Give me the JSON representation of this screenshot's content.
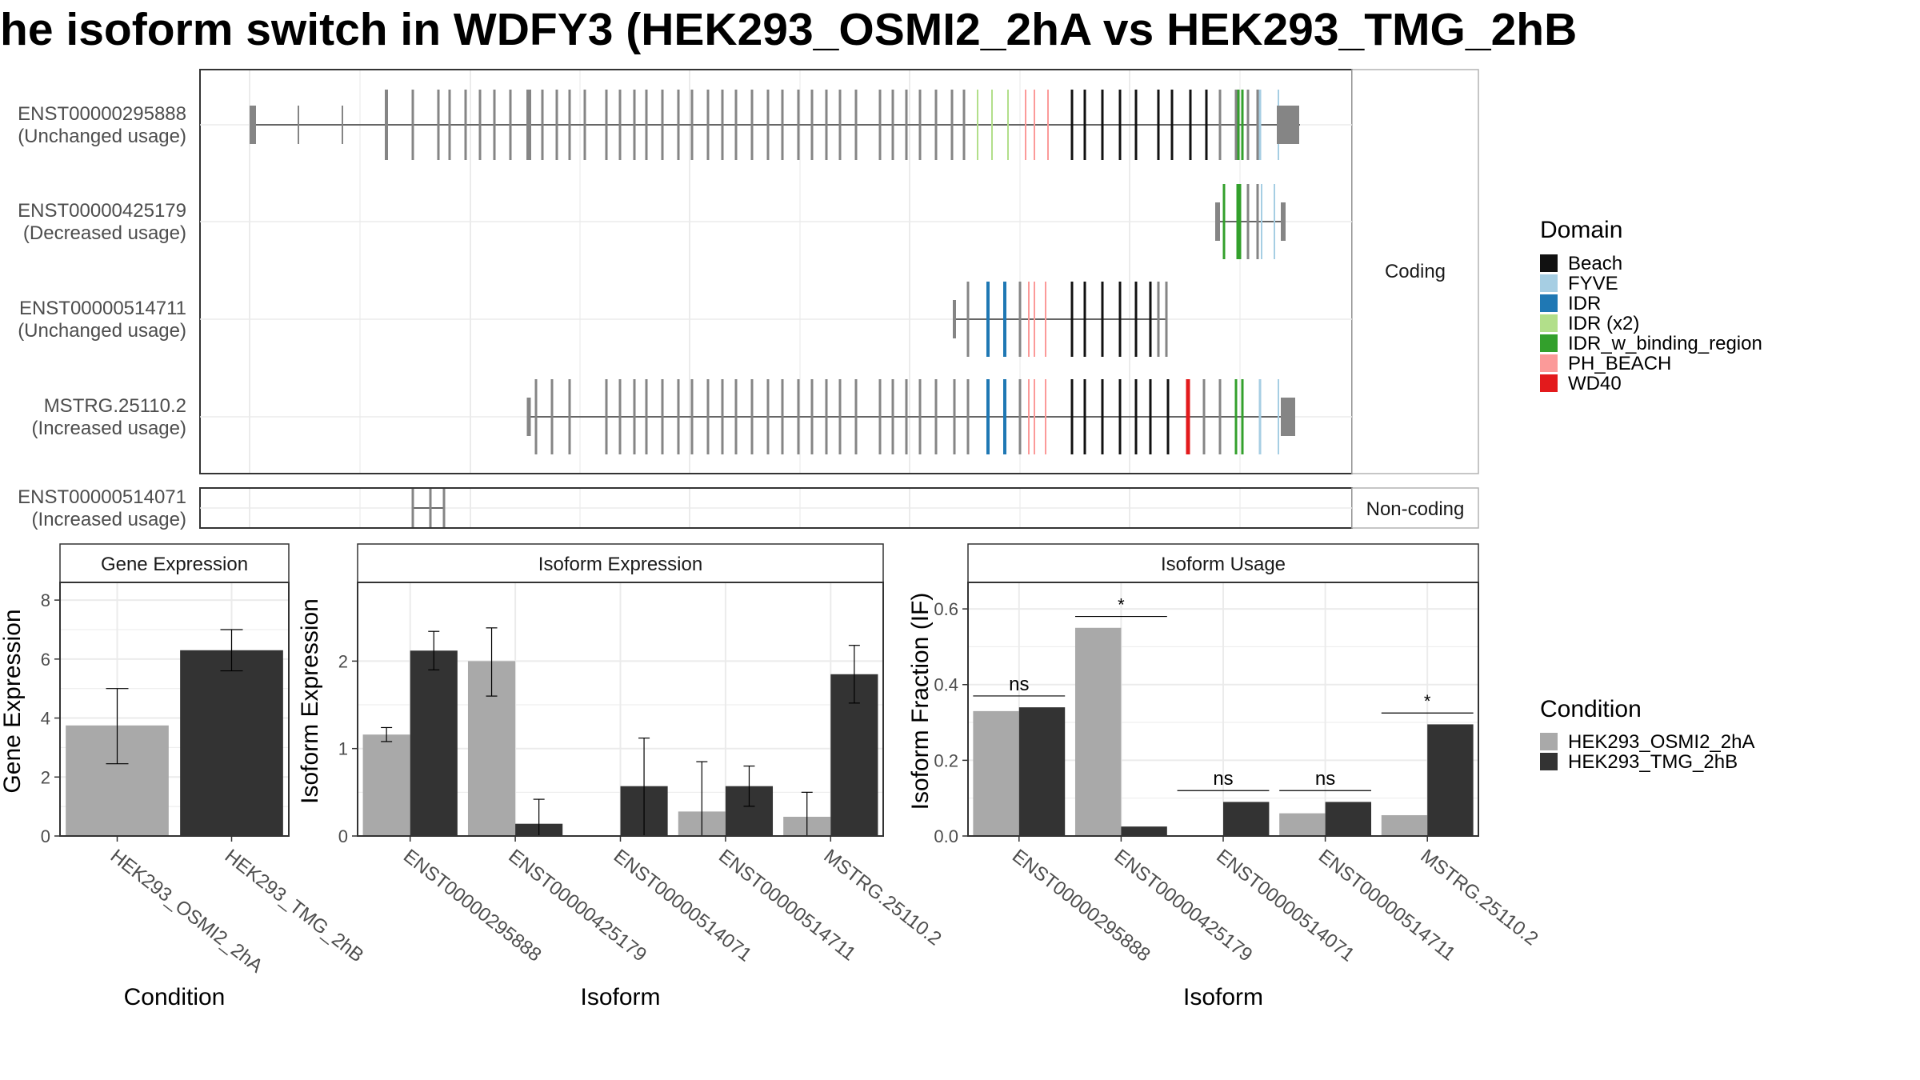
{
  "title": "he isoform switch in WDFY3 (HEK293_OSMI2_2hA vs HEK293_TMG_2hB",
  "colors": {
    "cond1": "#a9a9a9",
    "cond2": "#333333",
    "intron": "#666666",
    "exon_default": "#858585",
    "grid": "#ebebeb",
    "panel_border": "#333333",
    "strip_fill": "#ffffff",
    "strip_border": "#b3b3b3"
  },
  "transcripts": {
    "facet_labels": {
      "coding": "Coding",
      "noncoding": "Non-coding"
    },
    "rows": [
      {
        "id": "ENST00000295888",
        "usage": "(Unchanged usage)",
        "facet": "coding"
      },
      {
        "id": "ENST00000425179",
        "usage": "(Decreased usage)",
        "facet": "coding"
      },
      {
        "id": "ENST00000514711",
        "usage": "(Unchanged usage)",
        "facet": "coding"
      },
      {
        "id": "MSTRG.25110.2",
        "usage": "(Increased usage)",
        "facet": "coding"
      },
      {
        "id": "ENST00000514071",
        "usage": "(Increased usage)",
        "facet": "noncoding"
      }
    ],
    "domain_legend": {
      "title": "Domain",
      "items": [
        {
          "name": "Beach",
          "color": "#111111"
        },
        {
          "name": "FYVE",
          "color": "#a6cee3"
        },
        {
          "name": "IDR",
          "color": "#1f78b4"
        },
        {
          "name": "IDR (x2)",
          "color": "#b2df8a"
        },
        {
          "name": "IDR_w_binding_region",
          "color": "#33a02c"
        },
        {
          "name": "PH_BEACH",
          "color": "#fb9a99"
        },
        {
          "name": "WD40",
          "color": "#e31a1c"
        }
      ]
    }
  },
  "condition_legend": {
    "title": "Condition",
    "items": [
      {
        "name": "HEK293_OSMI2_2hA",
        "color": "#a9a9a9"
      },
      {
        "name": "HEK293_TMG_2hB",
        "color": "#333333"
      }
    ]
  },
  "chart_data": [
    {
      "type": "bar",
      "panel": "Gene Expression",
      "xlabel": "Condition",
      "ylabel": "Gene Expression",
      "ylim": [
        0,
        8.6
      ],
      "yticks": [
        0,
        2,
        4,
        6,
        8
      ],
      "categories": [
        "HEK293_OSMI2_2hA",
        "HEK293_TMG_2hB"
      ],
      "values": [
        3.75,
        6.3
      ],
      "errors": [
        [
          2.45,
          5.0
        ],
        [
          5.6,
          7.0
        ]
      ]
    },
    {
      "type": "bar",
      "panel": "Isoform Expression",
      "xlabel": "Isoform",
      "ylabel": "Isoform Expression",
      "ylim": [
        0,
        2.9
      ],
      "yticks": [
        0,
        1,
        2
      ],
      "categories": [
        "ENST00000295888",
        "ENST00000425179",
        "ENST00000514071",
        "ENST00000514711",
        "MSTRG.25110.2"
      ],
      "series": [
        {
          "name": "HEK293_OSMI2_2hA",
          "values": [
            1.16,
            2.0,
            0.0,
            0.28,
            0.22
          ],
          "errors": [
            [
              1.08,
              1.24
            ],
            [
              1.6,
              2.38
            ],
            [
              0.0,
              0.0
            ],
            [
              0.0,
              0.85
            ],
            [
              0.0,
              0.5
            ]
          ]
        },
        {
          "name": "HEK293_TMG_2hB",
          "values": [
            2.12,
            0.14,
            0.57,
            0.57,
            1.85
          ],
          "errors": [
            [
              1.9,
              2.34
            ],
            [
              0.0,
              0.42
            ],
            [
              0.0,
              1.12
            ],
            [
              0.34,
              0.8
            ],
            [
              1.52,
              2.18
            ]
          ]
        }
      ]
    },
    {
      "type": "bar",
      "panel": "Isoform Usage",
      "xlabel": "Isoform",
      "ylabel": "Isoform Fraction (IF)",
      "ylim": [
        0,
        0.67
      ],
      "yticks": [
        0.0,
        0.2,
        0.4,
        0.6
      ],
      "ytick_labels": [
        "0.0",
        "0.2",
        "0.4",
        "0.6"
      ],
      "categories": [
        "ENST00000295888",
        "ENST00000425179",
        "ENST00000514071",
        "ENST00000514711",
        "MSTRG.25110.2"
      ],
      "series": [
        {
          "name": "HEK293_OSMI2_2hA",
          "values": [
            0.33,
            0.55,
            0.0,
            0.06,
            0.055
          ]
        },
        {
          "name": "HEK293_TMG_2hB",
          "values": [
            0.34,
            0.025,
            0.09,
            0.09,
            0.295
          ]
        }
      ],
      "significance": [
        {
          "label": "ns",
          "y": 0.37
        },
        {
          "label": "*",
          "y": 0.58
        },
        {
          "label": "ns",
          "y": 0.12
        },
        {
          "label": "ns",
          "y": 0.12
        },
        {
          "label": "*",
          "y": 0.325
        }
      ]
    }
  ]
}
